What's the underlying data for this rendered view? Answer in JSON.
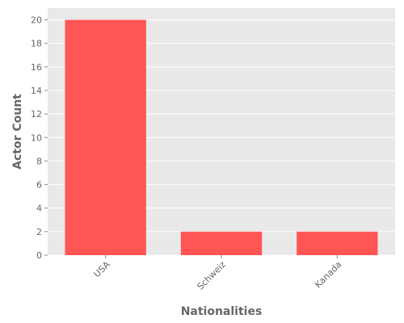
{
  "chart_data": {
    "type": "bar",
    "title": "",
    "xlabel": "Nationalities",
    "ylabel": "Actor Count",
    "categories": [
      "USA",
      "Schweiz",
      "Kanada"
    ],
    "values": [
      20,
      2,
      2
    ],
    "ylim": [
      0,
      21
    ],
    "yticks": [
      0,
      2,
      4,
      6,
      8,
      10,
      12,
      14,
      16,
      18,
      20
    ],
    "grid": true,
    "legend": "none",
    "colors": {
      "bar": "#ff5555",
      "plot_background": "#e9e9e9",
      "grid": "#ffffff",
      "text": "#666666"
    }
  }
}
